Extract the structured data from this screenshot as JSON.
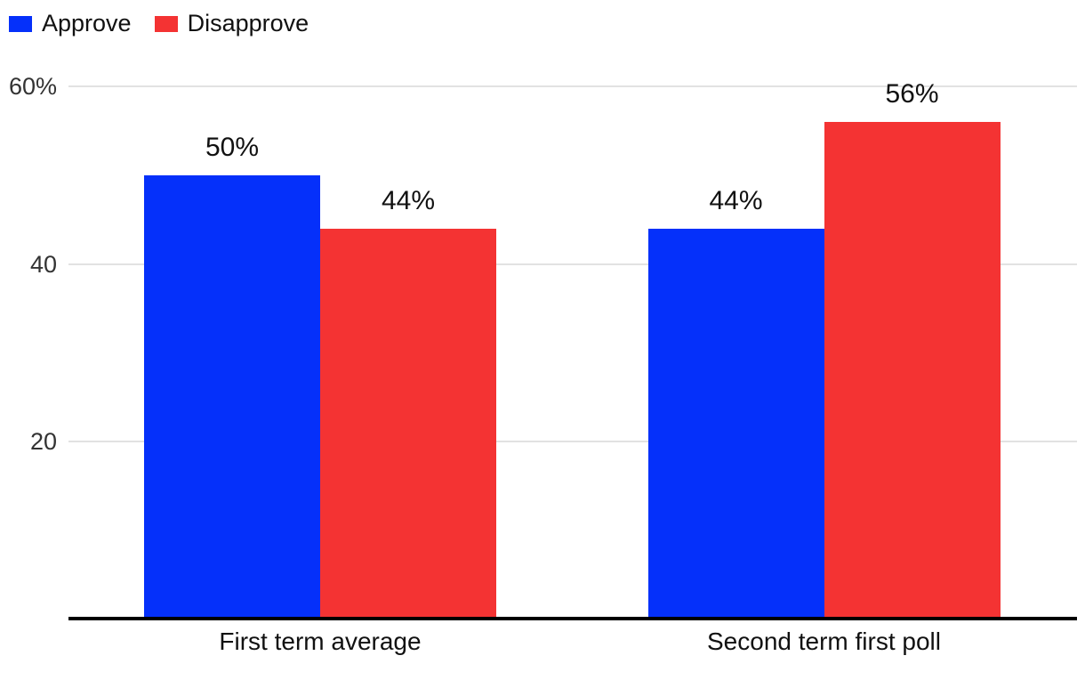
{
  "chart_data": {
    "type": "bar",
    "title": "",
    "categories": [
      "First term average",
      "Second term first poll"
    ],
    "series": [
      {
        "name": "Approve",
        "color": "#0530fa",
        "values": [
          50,
          44
        ],
        "labels": [
          "50%",
          "44%"
        ]
      },
      {
        "name": "Disapprove",
        "color": "#f43333",
        "values": [
          44,
          56
        ],
        "labels": [
          "44%",
          "56%"
        ]
      }
    ],
    "y_axis": {
      "range": [
        0,
        60
      ],
      "grid": true,
      "ticks": [
        {
          "value": 60,
          "label": "60%"
        },
        {
          "value": 40,
          "label": "40"
        },
        {
          "value": 20,
          "label": "20"
        }
      ]
    },
    "legend": {
      "position": "top-left",
      "entries": [
        "Approve",
        "Disapprove"
      ]
    },
    "colors": {
      "grid": "#e2e2e2",
      "axis": "#000000",
      "tick_text": "#333333",
      "label_text": "#111111"
    }
  }
}
